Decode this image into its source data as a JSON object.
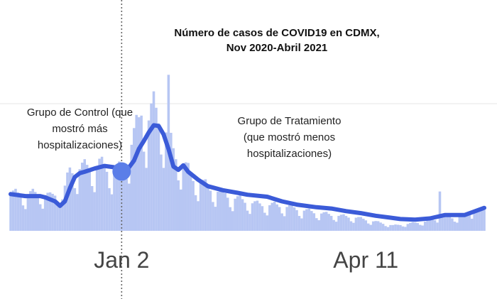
{
  "chart_data": {
    "type": "bar",
    "title_line1": "Número de casos de COVID19 en CDMX,",
    "title_line2": "Nov 2020-Abril 2021",
    "x_ticks": [
      {
        "label": "Jan 2",
        "index": 45
      },
      {
        "label": "Apr 11",
        "index": 144
      }
    ],
    "cutoff_index": 45,
    "annotations": {
      "control": [
        "Grupo de Control (que",
        "mostró más",
        "hospitalizaciones)"
      ],
      "treatment": [
        "Grupo de Tratamiento",
        "(que mostró menos",
        "hospitalizaciones)"
      ]
    },
    "colors": {
      "bars": "#b7c6f3",
      "line": "#3b5bd8",
      "marker": "#5b7ee8",
      "cutoff": "#666666",
      "grid": "#e6e6e6"
    },
    "bar_centers": [
      [
        0,
        56
      ],
      [
        8,
        55
      ],
      [
        12,
        58
      ],
      [
        16,
        51
      ],
      [
        20,
        62
      ],
      [
        21,
        48
      ],
      [
        24,
        92
      ],
      [
        30,
        95
      ],
      [
        36,
        100
      ],
      [
        40,
        93
      ],
      [
        44,
        92
      ],
      [
        48,
        120
      ],
      [
        52,
        165
      ],
      [
        53,
        185
      ],
      [
        55,
        160
      ],
      [
        58,
        185
      ],
      [
        62,
        160
      ],
      [
        66,
        120
      ],
      [
        70,
        100
      ],
      [
        74,
        80
      ],
      [
        80,
        66
      ],
      [
        90,
        50
      ],
      [
        100,
        40
      ],
      [
        110,
        38
      ],
      [
        120,
        30
      ],
      [
        130,
        24
      ],
      [
        140,
        20
      ],
      [
        150,
        12
      ],
      [
        155,
        8
      ],
      [
        160,
        10
      ],
      [
        170,
        15
      ],
      [
        175,
        20
      ],
      [
        180,
        20
      ],
      [
        185,
        24
      ],
      [
        190,
        30
      ]
    ],
    "spikes": [
      {
        "index": 64,
        "value": 238
      },
      {
        "index": 174,
        "value": 60
      },
      {
        "index": 188,
        "value": 28
      }
    ],
    "trend": [
      [
        0,
        56
      ],
      [
        6,
        53
      ],
      [
        12,
        53
      ],
      [
        14,
        51
      ],
      [
        18,
        45
      ],
      [
        20,
        38
      ],
      [
        22,
        45
      ],
      [
        24,
        65
      ],
      [
        26,
        82
      ],
      [
        28,
        88
      ],
      [
        30,
        90
      ],
      [
        34,
        95
      ],
      [
        38,
        99
      ],
      [
        42,
        97
      ],
      [
        44,
        91
      ],
      [
        46,
        90
      ],
      [
        48,
        97
      ],
      [
        50,
        107
      ],
      [
        52,
        125
      ],
      [
        54,
        137
      ],
      [
        56,
        150
      ],
      [
        58,
        161
      ],
      [
        60,
        160
      ],
      [
        62,
        147
      ],
      [
        64,
        125
      ],
      [
        66,
        98
      ],
      [
        68,
        93
      ],
      [
        70,
        100
      ],
      [
        72,
        90
      ],
      [
        76,
        78
      ],
      [
        80,
        68
      ],
      [
        86,
        62
      ],
      [
        92,
        58
      ],
      [
        96,
        55
      ],
      [
        104,
        52
      ],
      [
        110,
        45
      ],
      [
        116,
        40
      ],
      [
        124,
        36
      ],
      [
        130,
        34
      ],
      [
        136,
        30
      ],
      [
        142,
        27
      ],
      [
        148,
        23
      ],
      [
        154,
        20
      ],
      [
        158,
        18
      ],
      [
        164,
        17
      ],
      [
        170,
        19
      ],
      [
        176,
        24
      ],
      [
        184,
        24
      ],
      [
        192,
        35
      ]
    ],
    "x_range": [
      0,
      192
    ],
    "y_range": [
      0,
      260
    ]
  }
}
